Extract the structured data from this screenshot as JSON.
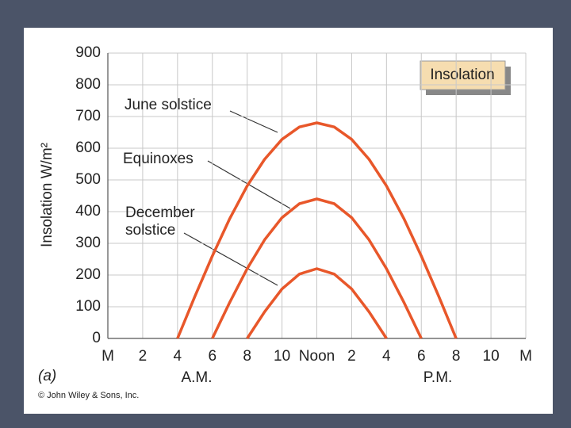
{
  "chart_data": {
    "type": "line",
    "title": "Insolation",
    "y_label": "Insolation W/m²",
    "panel_label": "(a)",
    "credit": "© John Wiley & Sons, Inc.",
    "am_label": "A.M.",
    "pm_label": "P.M.",
    "xlim": [
      0,
      24
    ],
    "xticks": [
      {
        "value": 0,
        "label": "M"
      },
      2,
      4,
      6,
      8,
      10,
      {
        "value": 12,
        "label": "Noon"
      },
      {
        "value": 14,
        "label": "2"
      },
      {
        "value": 16,
        "label": "4"
      },
      {
        "value": 18,
        "label": "6"
      },
      {
        "value": 20,
        "label": "8"
      },
      {
        "value": 22,
        "label": "10"
      },
      {
        "value": 24,
        "label": "M"
      }
    ],
    "ylim": [
      0,
      900
    ],
    "yticks": [
      0,
      100,
      200,
      300,
      400,
      500,
      600,
      700,
      800,
      900
    ],
    "grid": true,
    "series": [
      {
        "name": "June solstice",
        "color": "#e8572a",
        "x": [
          4,
          5,
          6,
          7,
          8,
          9,
          10,
          11,
          12,
          13,
          14,
          15,
          16,
          17,
          18,
          19,
          20
        ],
        "values": [
          0,
          133,
          260,
          378,
          481,
          565,
          628,
          667,
          680,
          667,
          628,
          565,
          481,
          378,
          260,
          133,
          0
        ]
      },
      {
        "name": "Equinoxes",
        "color": "#e8572a",
        "x": [
          6,
          7,
          8,
          9,
          10,
          11,
          12,
          13,
          14,
          15,
          16,
          17,
          18
        ],
        "values": [
          0,
          114,
          220,
          311,
          381,
          425,
          440,
          425,
          381,
          311,
          220,
          114,
          0
        ]
      },
      {
        "name": "December solstice",
        "color": "#e8572a",
        "x": [
          8,
          9,
          10,
          11,
          12,
          13,
          14,
          15,
          16
        ],
        "values": [
          0,
          84,
          156,
          203,
          220,
          203,
          156,
          84,
          0
        ]
      }
    ]
  }
}
